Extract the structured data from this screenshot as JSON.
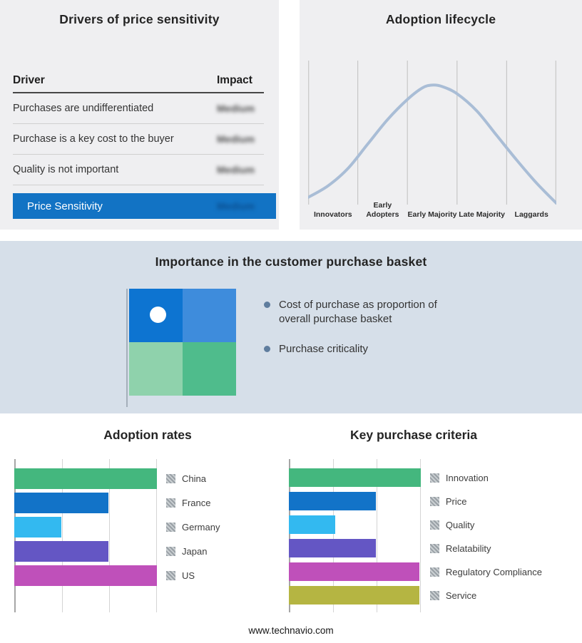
{
  "drivers_panel": {
    "title": "Drivers of price sensitivity",
    "columns": {
      "driver": "Driver",
      "impact": "Impact"
    },
    "rows": [
      {
        "driver": "Purchases are undifferentiated",
        "impact": "Medium"
      },
      {
        "driver": "Purchase is a key cost to the buyer",
        "impact": "Medium"
      },
      {
        "driver": "Quality is not important",
        "impact": "Medium"
      }
    ],
    "summary_row": {
      "label": "Price Sensitivity",
      "impact": "Medium"
    },
    "accent_color": "#1273c4"
  },
  "basket_panel": {
    "title": "Importance in the customer purchase basket",
    "bullets": [
      "Cost of purchase as proportion of overall purchase basket",
      "Purchase criticality"
    ],
    "quadrant_colors": [
      "#0d74d1",
      "#3e8cdc",
      "#8fd2ac",
      "#4fbc8c"
    ],
    "background_color": "#d6dfe9"
  },
  "footer": {
    "url": "www.technavio.com"
  },
  "chart_data": [
    {
      "id": "adoption_lifecycle",
      "type": "line",
      "title": "Adoption lifecycle",
      "x_categories": [
        "Innovators",
        "Early Adopters",
        "Early Majority",
        "Late Majority",
        "Laggards"
      ],
      "curve_shape": "bell",
      "curve_points_pct": [
        [
          0,
          95
        ],
        [
          8,
          87
        ],
        [
          16,
          75
        ],
        [
          24,
          58
        ],
        [
          32,
          41
        ],
        [
          40,
          27
        ],
        [
          46,
          19
        ],
        [
          50,
          17
        ],
        [
          54,
          18
        ],
        [
          60,
          23
        ],
        [
          68,
          35
        ],
        [
          76,
          52
        ],
        [
          84,
          69
        ],
        [
          92,
          85
        ],
        [
          100,
          99
        ]
      ],
      "line_color": "#a9bdd6",
      "grid": true,
      "legend_position": "none"
    },
    {
      "id": "adoption_rates",
      "type": "bar",
      "orientation": "horizontal",
      "title": "Adoption rates",
      "categories": [
        "China",
        "France",
        "Germany",
        "Japan",
        "US"
      ],
      "values": [
        100,
        66,
        33,
        66,
        100
      ],
      "xlim": [
        0,
        100
      ],
      "colors": [
        "#44b77e",
        "#1273c8",
        "#33b9f0",
        "#6456c4",
        "#bf50ba"
      ],
      "grid": true,
      "legend_position": "right"
    },
    {
      "id": "key_purchase_criteria",
      "type": "bar",
      "orientation": "horizontal",
      "title": "Key purchase criteria",
      "categories": [
        "Innovation",
        "Price",
        "Quality",
        "Relatability",
        "Regulatory Compliance",
        "Service"
      ],
      "values": [
        100,
        66,
        35,
        66,
        99,
        99
      ],
      "xlim": [
        0,
        100
      ],
      "colors": [
        "#44b77e",
        "#1273c8",
        "#33b9f0",
        "#6456c4",
        "#bf50ba",
        "#b5b542"
      ],
      "grid": true,
      "legend_position": "right"
    }
  ]
}
